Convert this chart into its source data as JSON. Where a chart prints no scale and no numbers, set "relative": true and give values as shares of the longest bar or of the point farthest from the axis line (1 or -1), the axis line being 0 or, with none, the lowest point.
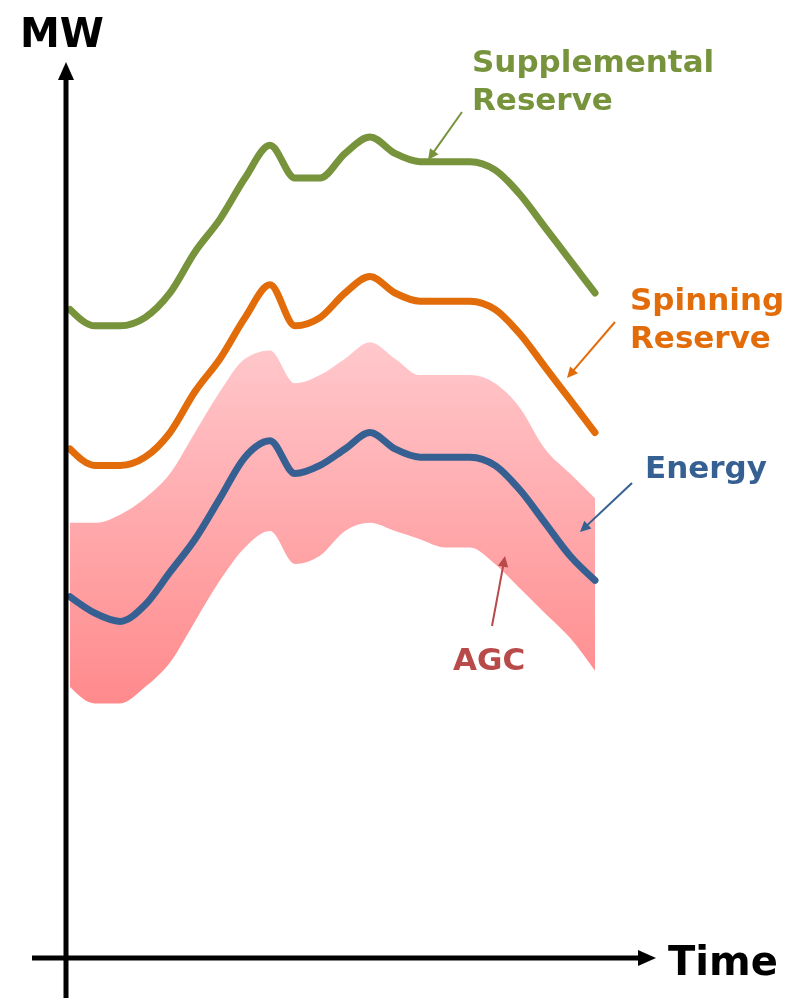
{
  "chart_data": {
    "type": "line",
    "relative": true,
    "ylabel": "MW",
    "xlabel": "Time",
    "marker": "none",
    "line_style": "solid",
    "categories": [
      null,
      null,
      null,
      null,
      null,
      null,
      null,
      null,
      null,
      null,
      null,
      null,
      null,
      null,
      null,
      null,
      null,
      null,
      null,
      null,
      null,
      null
    ],
    "series": [
      {
        "name": "Supplemental Reserve",
        "color": "#77933c",
        "values": [
          0.79,
          0.77,
          0.77,
          0.78,
          0.81,
          0.86,
          0.9,
          0.95,
          0.99,
          0.95,
          0.95,
          0.98,
          1.0,
          0.98,
          0.97,
          0.97,
          0.97,
          0.96,
          0.93,
          0.89,
          0.85,
          0.81
        ]
      },
      {
        "name": "Spinning Reserve",
        "color": "#e36c0a",
        "values": [
          0.62,
          0.6,
          0.6,
          0.61,
          0.64,
          0.69,
          0.73,
          0.78,
          0.82,
          0.77,
          0.78,
          0.81,
          0.83,
          0.81,
          0.8,
          0.8,
          0.8,
          0.79,
          0.76,
          0.72,
          0.68,
          0.64
        ]
      },
      {
        "name": "Energy",
        "color": "#376092",
        "values": [
          0.44,
          0.42,
          0.41,
          0.43,
          0.47,
          0.51,
          0.56,
          0.61,
          0.63,
          0.59,
          0.6,
          0.62,
          0.64,
          0.62,
          0.61,
          0.61,
          0.61,
          0.6,
          0.57,
          0.53,
          0.49,
          0.46
        ],
        "lower": [
          0.33,
          0.31,
          0.31,
          0.33,
          0.36,
          0.41,
          0.46,
          0.5,
          0.52,
          0.48,
          0.49,
          0.52,
          0.53,
          0.52,
          0.51,
          0.5,
          0.5,
          0.48,
          0.45,
          0.42,
          0.39,
          0.35
        ],
        "upper": [
          0.53,
          0.53,
          0.54,
          0.56,
          0.59,
          0.64,
          0.69,
          0.73,
          0.74,
          0.7,
          0.71,
          0.73,
          0.75,
          0.73,
          0.71,
          0.71,
          0.71,
          0.7,
          0.67,
          0.62,
          0.59,
          0.56
        ]
      }
    ],
    "annotations": [
      "AGC"
    ]
  }
}
